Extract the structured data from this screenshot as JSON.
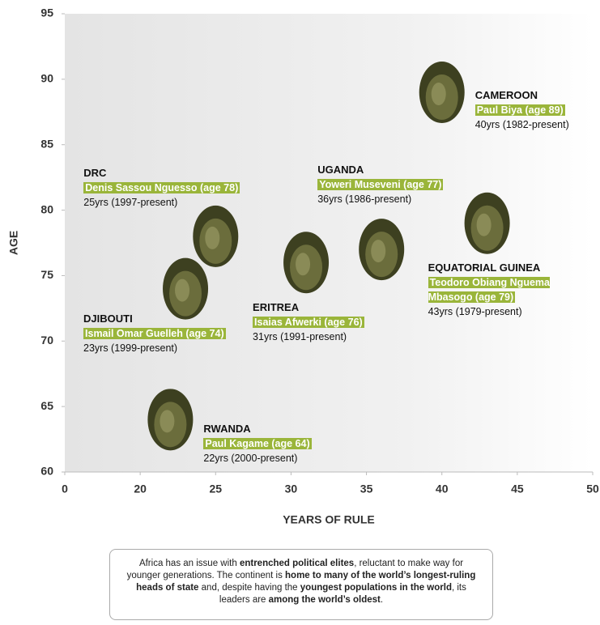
{
  "chart_data": {
    "type": "scatter",
    "xlabel": "YEARS OF RULE",
    "ylabel": "AGE",
    "xlim": [
      0,
      50
    ],
    "xbreak": [
      0,
      15
    ],
    "ylim": [
      60,
      95
    ],
    "xticks": [
      0,
      20,
      25,
      30,
      35,
      40,
      45,
      50
    ],
    "yticks": [
      60,
      65,
      70,
      75,
      80,
      85,
      90,
      95
    ],
    "color": "#3d4020",
    "highlight_color": "#9ab53a",
    "grid": false,
    "points": [
      {
        "country": "DRC",
        "leader": "Denis Sassou Nguesso (age 78)",
        "tenure": "25yrs (1997-present)",
        "years": 25,
        "age": 78
      },
      {
        "country": "DJIBOUTI",
        "leader": "Ismail Omar Guelleh (age 74)",
        "tenure": "23yrs (1999-present)",
        "years": 23,
        "age": 74
      },
      {
        "country": "RWANDA",
        "leader": "Paul Kagame (age 64)",
        "tenure": "22yrs (2000-present)",
        "years": 22,
        "age": 64
      },
      {
        "country": "ERITREA",
        "leader": "Isaias Afwerki (age 76)",
        "tenure": "31yrs (1991-present)",
        "years": 31,
        "age": 76
      },
      {
        "country": "UGANDA",
        "leader": "Yoweri Museveni (age 77)",
        "tenure": "36yrs (1986-present)",
        "years": 36,
        "age": 77
      },
      {
        "country": "CAMEROON",
        "leader": "Paul Biya (age 89)",
        "tenure": "40yrs (1982-present)",
        "years": 40,
        "age": 89
      },
      {
        "country": "EQUATORIAL GUINEA",
        "leader": "Teodoro Obiang Nguema Mbasogo (age 79)",
        "tenure": "43yrs (1979-present)",
        "years": 43,
        "age": 79
      }
    ]
  },
  "note": [
    {
      "text": "Africa has an issue with ",
      "bold": false
    },
    {
      "text": "entrenched political elites",
      "bold": true
    },
    {
      "text": ", reluctant to make way for younger generations. The continent is ",
      "bold": false
    },
    {
      "text": "home to many of the world’s longest-ruling heads of state",
      "bold": true
    },
    {
      "text": " and, despite having the ",
      "bold": false
    },
    {
      "text": "youngest populations in the world",
      "bold": true
    },
    {
      "text": ", its leaders are ",
      "bold": false
    },
    {
      "text": "among the world’s oldest",
      "bold": true
    },
    {
      "text": ".",
      "bold": false
    }
  ]
}
